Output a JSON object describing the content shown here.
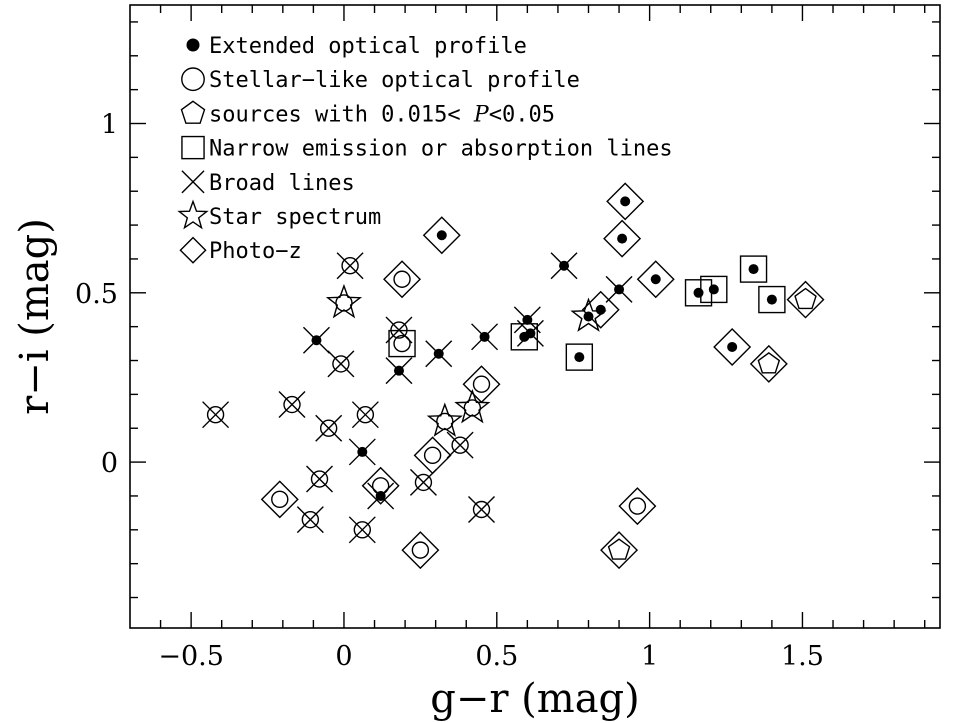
{
  "chart_data": {
    "type": "scatter",
    "xlabel": "g−r (mag)",
    "ylabel": "r−i (mag)",
    "xlim": [
      -0.7,
      1.95
    ],
    "ylim": [
      -0.49,
      1.35
    ],
    "x_ticks_labeled": [
      {
        "value": -0.5,
        "label": "−0.5"
      },
      {
        "value": 0,
        "label": "0"
      },
      {
        "value": 0.5,
        "label": "0.5"
      },
      {
        "value": 1,
        "label": "1"
      },
      {
        "value": 1.5,
        "label": "1.5"
      }
    ],
    "y_ticks_labeled": [
      {
        "value": 0,
        "label": "0"
      },
      {
        "value": 0.5,
        "label": "0.5"
      },
      {
        "value": 1,
        "label": "1"
      }
    ],
    "x_minor_step": 0.1,
    "y_minor_step": 0.1,
    "legend": {
      "placement": "top-left",
      "entries": [
        {
          "marker": "filled-circle",
          "text": "Extended optical profile"
        },
        {
          "marker": "open-circle",
          "text": "Stellar−like optical profile"
        },
        {
          "marker": "pentagon",
          "text": "sources with 0.015< P<0.05",
          "prefix": "sources with 0.015< ",
          "italic": "P",
          "suffix": "<0.05"
        },
        {
          "marker": "square",
          "text": "Narrow emission or absorption lines"
        },
        {
          "marker": "cross",
          "text": "Broad lines"
        },
        {
          "marker": "star",
          "text": "Star spectrum"
        },
        {
          "marker": "diamond",
          "text": "Photo−z"
        }
      ]
    },
    "points": [
      {
        "x": -0.42,
        "y": 0.14,
        "m": [
          "open",
          "cross"
        ]
      },
      {
        "x": -0.17,
        "y": 0.17,
        "m": [
          "open",
          "cross"
        ]
      },
      {
        "x": -0.11,
        "y": -0.17,
        "m": [
          "open",
          "cross"
        ]
      },
      {
        "x": -0.08,
        "y": -0.05,
        "m": [
          "open",
          "cross"
        ]
      },
      {
        "x": -0.05,
        "y": 0.1,
        "m": [
          "open",
          "cross"
        ]
      },
      {
        "x": -0.01,
        "y": 0.29,
        "m": [
          "open",
          "cross"
        ]
      },
      {
        "x": 0.02,
        "y": 0.58,
        "m": [
          "open",
          "cross"
        ]
      },
      {
        "x": -0.09,
        "y": 0.36,
        "m": [
          "filled",
          "cross"
        ]
      },
      {
        "x": 0.0,
        "y": 0.47,
        "m": [
          "open",
          "star"
        ]
      },
      {
        "x": 0.06,
        "y": 0.03,
        "m": [
          "filled",
          "cross"
        ]
      },
      {
        "x": 0.07,
        "y": 0.14,
        "m": [
          "open",
          "cross"
        ]
      },
      {
        "x": 0.06,
        "y": -0.2,
        "m": [
          "open",
          "cross"
        ]
      },
      {
        "x": -0.21,
        "y": -0.11,
        "m": [
          "open",
          "diamond"
        ]
      },
      {
        "x": 0.12,
        "y": -0.07,
        "m": [
          "open",
          "diamond"
        ]
      },
      {
        "x": 0.12,
        "y": -0.1,
        "m": [
          "filled",
          "cross"
        ]
      },
      {
        "x": 0.18,
        "y": 0.39,
        "m": [
          "open",
          "cross"
        ]
      },
      {
        "x": 0.18,
        "y": 0.27,
        "m": [
          "filled",
          "cross"
        ]
      },
      {
        "x": 0.19,
        "y": 0.35,
        "m": [
          "open",
          "square"
        ]
      },
      {
        "x": 0.19,
        "y": 0.54,
        "m": [
          "open",
          "diamond"
        ]
      },
      {
        "x": 0.25,
        "y": -0.26,
        "m": [
          "open",
          "diamond"
        ]
      },
      {
        "x": 0.26,
        "y": -0.06,
        "m": [
          "open",
          "cross"
        ]
      },
      {
        "x": 0.29,
        "y": 0.02,
        "m": [
          "open",
          "diamond"
        ]
      },
      {
        "x": 0.31,
        "y": 0.32,
        "m": [
          "filled",
          "cross"
        ]
      },
      {
        "x": 0.32,
        "y": 0.67,
        "m": [
          "filled",
          "diamond"
        ]
      },
      {
        "x": 0.33,
        "y": 0.12,
        "m": [
          "open",
          "star"
        ]
      },
      {
        "x": 0.38,
        "y": 0.05,
        "m": [
          "open",
          "cross"
        ]
      },
      {
        "x": 0.42,
        "y": 0.16,
        "m": [
          "open",
          "star"
        ]
      },
      {
        "x": 0.45,
        "y": 0.23,
        "m": [
          "open",
          "diamond"
        ]
      },
      {
        "x": 0.46,
        "y": 0.37,
        "m": [
          "filled",
          "cross"
        ]
      },
      {
        "x": 0.45,
        "y": -0.14,
        "m": [
          "open",
          "cross"
        ]
      },
      {
        "x": 0.59,
        "y": 0.37,
        "m": [
          "filled",
          "square"
        ]
      },
      {
        "x": 0.6,
        "y": 0.42,
        "m": [
          "filled",
          "cross"
        ]
      },
      {
        "x": 0.61,
        "y": 0.38,
        "m": [
          "filled",
          "cross"
        ]
      },
      {
        "x": 0.72,
        "y": 0.58,
        "m": [
          "filled",
          "cross"
        ]
      },
      {
        "x": 0.77,
        "y": 0.31,
        "m": [
          "filled",
          "square"
        ]
      },
      {
        "x": 0.8,
        "y": 0.43,
        "m": [
          "filled",
          "star"
        ]
      },
      {
        "x": 0.84,
        "y": 0.45,
        "m": [
          "filled",
          "diamond"
        ]
      },
      {
        "x": 0.9,
        "y": 0.51,
        "m": [
          "filled",
          "cross"
        ]
      },
      {
        "x": 0.91,
        "y": 0.66,
        "m": [
          "filled",
          "diamond"
        ]
      },
      {
        "x": 0.92,
        "y": 0.77,
        "m": [
          "filled",
          "diamond"
        ]
      },
      {
        "x": 0.9,
        "y": -0.26,
        "m": [
          "pentagon",
          "diamond"
        ]
      },
      {
        "x": 0.96,
        "y": -0.13,
        "m": [
          "open",
          "diamond"
        ]
      },
      {
        "x": 1.02,
        "y": 0.54,
        "m": [
          "filled",
          "diamond"
        ]
      },
      {
        "x": 1.16,
        "y": 0.5,
        "m": [
          "filled",
          "square"
        ]
      },
      {
        "x": 1.21,
        "y": 0.51,
        "m": [
          "filled",
          "square"
        ]
      },
      {
        "x": 1.27,
        "y": 0.34,
        "m": [
          "filled",
          "diamond"
        ]
      },
      {
        "x": 1.34,
        "y": 0.57,
        "m": [
          "filled",
          "square"
        ]
      },
      {
        "x": 1.4,
        "y": 0.48,
        "m": [
          "filled",
          "square"
        ]
      },
      {
        "x": 1.39,
        "y": 0.29,
        "m": [
          "pentagon",
          "diamond"
        ]
      },
      {
        "x": 1.51,
        "y": 0.48,
        "m": [
          "pentagon",
          "diamond"
        ]
      }
    ]
  }
}
